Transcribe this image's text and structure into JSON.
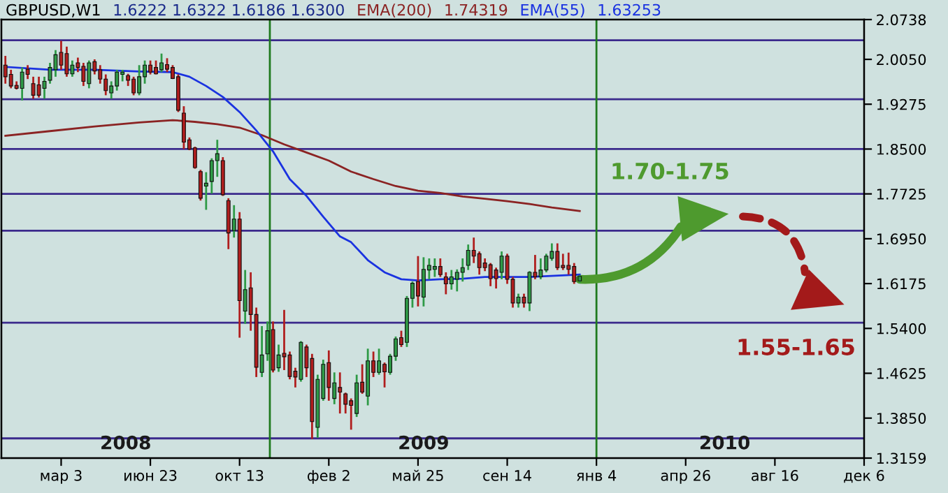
{
  "chart_data": {
    "type": "candlestick",
    "title": "GBPUSD,W1",
    "x": [
      "2007-12-24",
      "2007-12-31",
      "2008-01-07",
      "2008-01-14",
      "2008-01-21",
      "2008-01-28",
      "2008-02-04",
      "2008-02-11",
      "2008-02-18",
      "2008-02-25",
      "2008-03-03",
      "2008-03-10",
      "2008-03-17",
      "2008-03-24",
      "2008-03-31",
      "2008-04-07",
      "2008-04-14",
      "2008-04-21",
      "2008-04-28",
      "2008-05-05",
      "2008-05-12",
      "2008-05-19",
      "2008-05-26",
      "2008-06-02",
      "2008-06-09",
      "2008-06-16",
      "2008-06-23",
      "2008-06-30",
      "2008-07-07",
      "2008-07-14",
      "2008-07-21",
      "2008-07-28",
      "2008-08-04",
      "2008-08-11",
      "2008-08-18",
      "2008-08-25",
      "2008-09-01",
      "2008-09-08",
      "2008-09-15",
      "2008-09-22",
      "2008-09-29",
      "2008-10-06",
      "2008-10-13",
      "2008-10-20",
      "2008-10-27",
      "2008-11-03",
      "2008-11-10",
      "2008-11-17",
      "2008-11-24",
      "2008-12-01",
      "2008-12-08",
      "2008-12-15",
      "2008-12-22",
      "2008-12-29",
      "2009-01-05",
      "2009-01-12",
      "2009-01-19",
      "2009-01-26",
      "2009-02-02",
      "2009-02-09",
      "2009-02-16",
      "2009-02-23",
      "2009-03-02",
      "2009-03-09",
      "2009-03-16",
      "2009-03-23",
      "2009-03-30",
      "2009-04-06",
      "2009-04-13",
      "2009-04-20",
      "2009-04-27",
      "2009-05-04",
      "2009-05-11",
      "2009-05-18",
      "2009-05-25",
      "2009-06-01",
      "2009-06-08",
      "2009-06-15",
      "2009-06-22",
      "2009-06-29",
      "2009-07-06",
      "2009-07-13",
      "2009-07-20",
      "2009-07-27",
      "2009-08-03",
      "2009-08-10",
      "2009-08-17",
      "2009-08-24",
      "2009-08-31",
      "2009-09-07",
      "2009-09-14",
      "2009-09-21",
      "2009-09-28",
      "2009-10-05",
      "2009-10-12",
      "2009-10-19",
      "2009-10-26",
      "2009-11-02",
      "2009-11-09",
      "2009-11-16",
      "2009-11-23",
      "2009-11-30",
      "2009-12-07",
      "2009-12-14"
    ],
    "ohlc": [
      [
        1.995,
        2.011,
        1.963,
        1.975
      ],
      [
        1.979,
        1.987,
        1.955,
        1.959
      ],
      [
        1.96,
        1.967,
        1.953,
        1.955
      ],
      [
        1.955,
        1.991,
        1.934,
        1.983
      ],
      [
        1.988,
        1.995,
        1.971,
        1.979
      ],
      [
        1.963,
        1.975,
        1.937,
        1.943
      ],
      [
        1.961,
        1.975,
        1.939,
        1.943
      ],
      [
        1.955,
        1.975,
        1.937,
        1.967
      ],
      [
        1.969,
        1.999,
        1.963,
        1.991
      ],
      [
        1.987,
        2.021,
        1.975,
        2.013
      ],
      [
        2.017,
        2.037,
        1.987,
        1.995
      ],
      [
        2.015,
        2.027,
        1.975,
        1.98
      ],
      [
        1.98,
        2.003,
        1.975,
        1.995
      ],
      [
        1.999,
        2.008,
        1.983,
        1.991
      ],
      [
        1.993,
        1.999,
        1.959,
        1.967
      ],
      [
        1.963,
        2.003,
        1.955,
        1.999
      ],
      [
        2.001,
        2.005,
        1.979,
        1.985
      ],
      [
        1.987,
        1.995,
        1.963,
        1.971
      ],
      [
        1.971,
        1.979,
        1.943,
        1.951
      ],
      [
        1.947,
        1.967,
        1.937,
        1.959
      ],
      [
        1.959,
        1.987,
        1.951,
        1.983
      ],
      [
        1.979,
        1.987,
        1.967,
        1.983
      ],
      [
        1.977,
        1.98,
        1.959,
        1.969
      ],
      [
        1.971,
        1.975,
        1.943,
        1.947
      ],
      [
        1.947,
        1.995,
        1.943,
        1.975
      ],
      [
        1.975,
        2.003,
        1.963,
        1.995
      ],
      [
        1.995,
        2.003,
        1.979,
        1.983
      ],
      [
        1.991,
        2.003,
        1.979,
        1.98
      ],
      [
        1.987,
        2.015,
        1.983,
        1.999
      ],
      [
        1.996,
        2.007,
        1.983,
        1.988
      ],
      [
        1.991,
        1.995,
        1.971,
        1.972
      ],
      [
        1.975,
        1.979,
        1.914,
        1.917
      ],
      [
        1.912,
        1.924,
        1.85,
        1.862
      ],
      [
        1.866,
        1.87,
        1.848,
        1.85
      ],
      [
        1.852,
        1.854,
        1.816,
        1.818
      ],
      [
        1.811,
        1.814,
        1.761,
        1.765
      ],
      [
        1.786,
        1.81,
        1.745,
        1.791
      ],
      [
        1.794,
        1.834,
        1.773,
        1.83
      ],
      [
        1.83,
        1.866,
        1.802,
        1.842
      ],
      [
        1.83,
        1.836,
        1.769,
        1.771
      ],
      [
        1.761,
        1.765,
        1.677,
        1.705
      ],
      [
        1.709,
        1.753,
        1.697,
        1.729
      ],
      [
        1.729,
        1.741,
        1.524,
        1.588
      ],
      [
        1.57,
        1.641,
        1.548,
        1.607
      ],
      [
        1.61,
        1.637,
        1.536,
        1.564
      ],
      [
        1.564,
        1.576,
        1.456,
        1.473
      ],
      [
        1.464,
        1.544,
        1.456,
        1.494
      ],
      [
        1.496,
        1.552,
        1.484,
        1.536
      ],
      [
        1.538,
        1.552,
        1.464,
        1.468
      ],
      [
        1.472,
        1.512,
        1.465,
        1.494
      ],
      [
        1.497,
        1.572,
        1.468,
        1.491
      ],
      [
        1.494,
        1.5,
        1.452,
        1.457
      ],
      [
        1.466,
        1.472,
        1.438,
        1.456
      ],
      [
        1.452,
        1.518,
        1.448,
        1.516
      ],
      [
        1.508,
        1.512,
        1.456,
        1.472
      ],
      [
        1.488,
        1.496,
        1.349,
        1.379
      ],
      [
        1.369,
        1.46,
        1.351,
        1.452
      ],
      [
        1.419,
        1.486,
        1.415,
        1.478
      ],
      [
        1.481,
        1.502,
        1.415,
        1.438
      ],
      [
        1.419,
        1.464,
        1.409,
        1.446
      ],
      [
        1.438,
        1.464,
        1.393,
        1.43
      ],
      [
        1.427,
        1.429,
        1.393,
        1.409
      ],
      [
        1.415,
        1.419,
        1.365,
        1.407
      ],
      [
        1.393,
        1.46,
        1.387,
        1.446
      ],
      [
        1.447,
        1.478,
        1.427,
        1.43
      ],
      [
        1.423,
        1.505,
        1.407,
        1.484
      ],
      [
        1.484,
        1.5,
        1.456,
        1.464
      ],
      [
        1.464,
        1.505,
        1.46,
        1.484
      ],
      [
        1.478,
        1.481,
        1.438,
        1.465
      ],
      [
        1.464,
        1.496,
        1.46,
        1.492
      ],
      [
        1.492,
        1.526,
        1.484,
        1.522
      ],
      [
        1.524,
        1.536,
        1.508,
        1.512
      ],
      [
        1.516,
        1.596,
        1.508,
        1.592
      ],
      [
        1.592,
        1.621,
        1.576,
        1.618
      ],
      [
        1.621,
        1.665,
        1.578,
        1.596
      ],
      [
        1.594,
        1.663,
        1.578,
        1.642
      ],
      [
        1.641,
        1.661,
        1.625,
        1.649
      ],
      [
        1.642,
        1.661,
        1.629,
        1.647
      ],
      [
        1.647,
        1.661,
        1.629,
        1.633
      ],
      [
        1.629,
        1.637,
        1.599,
        1.617
      ],
      [
        1.617,
        1.641,
        1.607,
        1.629
      ],
      [
        1.625,
        1.642,
        1.604,
        1.637
      ],
      [
        1.637,
        1.661,
        1.621,
        1.645
      ],
      [
        1.649,
        1.685,
        1.641,
        1.675
      ],
      [
        1.675,
        1.697,
        1.653,
        1.665
      ],
      [
        1.669,
        1.673,
        1.633,
        1.645
      ],
      [
        1.653,
        1.661,
        1.639,
        1.645
      ],
      [
        1.65,
        1.653,
        1.613,
        1.626
      ],
      [
        1.641,
        1.645,
        1.609,
        1.626
      ],
      [
        1.637,
        1.673,
        1.625,
        1.665
      ],
      [
        1.665,
        1.669,
        1.617,
        1.625
      ],
      [
        1.625,
        1.629,
        1.576,
        1.584
      ],
      [
        1.584,
        1.6,
        1.576,
        1.594
      ],
      [
        1.594,
        1.6,
        1.576,
        1.584
      ],
      [
        1.584,
        1.639,
        1.57,
        1.637
      ],
      [
        1.637,
        1.667,
        1.625,
        1.629
      ],
      [
        1.629,
        1.661,
        1.625,
        1.641
      ],
      [
        1.641,
        1.669,
        1.637,
        1.665
      ],
      [
        1.661,
        1.687,
        1.657,
        1.673
      ],
      [
        1.673,
        1.687,
        1.641,
        1.645
      ],
      [
        1.649,
        1.669,
        1.641,
        1.645
      ],
      [
        1.649,
        1.671,
        1.633,
        1.642
      ],
      [
        1.647,
        1.653,
        1.617,
        1.621
      ],
      [
        1.6222,
        1.6322,
        1.6186,
        1.63
      ]
    ],
    "colors": [
      "#b01e1e",
      "#b01e1e",
      "#b01e1e",
      "#2e9a46",
      "#b01e1e",
      "#b01e1e",
      "#b01e1e",
      "#2e9a46",
      "#2e9a46",
      "#2e9a46",
      "#b01e1e",
      "#b01e1e",
      "#2e9a46",
      "#b01e1e",
      "#b01e1e",
      "#2e9a46",
      "#b01e1e",
      "#b01e1e",
      "#b01e1e",
      "#2e9a46",
      "#2e9a46",
      "#2e9a46",
      "#b01e1e",
      "#b01e1e",
      "#2e9a46",
      "#2e9a46",
      "#b01e1e",
      "#b01e1e",
      "#2e9a46",
      "#b01e1e",
      "#b01e1e",
      "#b01e1e",
      "#b01e1e",
      "#b01e1e",
      "#b01e1e",
      "#b01e1e",
      "#2e9a46",
      "#2e9a46",
      "#2e9a46",
      "#b01e1e",
      "#b01e1e",
      "#2e9a46",
      "#b01e1e",
      "#2e9a46",
      "#b01e1e",
      "#b01e1e",
      "#2e9a46",
      "#2e9a46",
      "#b01e1e",
      "#2e9a46",
      "#b01e1e",
      "#b01e1e",
      "#b01e1e",
      "#2e9a46",
      "#b01e1e",
      "#b01e1e",
      "#2e9a46",
      "#2e9a46",
      "#b01e1e",
      "#2e9a46",
      "#b01e1e",
      "#b01e1e",
      "#b01e1e",
      "#2e9a46",
      "#b01e1e",
      "#2e9a46",
      "#b01e1e",
      "#2e9a46",
      "#b01e1e",
      "#2e9a46",
      "#2e9a46",
      "#b01e1e",
      "#2e9a46",
      "#2e9a46",
      "#b01e1e",
      "#2e9a46",
      "#2e9a46",
      "#2e9a46",
      "#b01e1e",
      "#b01e1e",
      "#2e9a46",
      "#2e9a46",
      "#2e9a46",
      "#2e9a46",
      "#b01e1e",
      "#b01e1e",
      "#b01e1e",
      "#b01e1e",
      "#b01e1e",
      "#2e9a46",
      "#b01e1e",
      "#b01e1e",
      "#2e9a46",
      "#b01e1e",
      "#2e9a46",
      "#b01e1e",
      "#2e9a46",
      "#2e9a46",
      "#2e9a46",
      "#b01e1e",
      "#b01e1e",
      "#b01e1e",
      "#b01e1e",
      "#2e9a46"
    ],
    "series": [
      {
        "name": "EMA(200)",
        "type": "line",
        "color": "#8b2323",
        "x": [
          "2007-12-24",
          "2008-02-18",
          "2008-04-14",
          "2008-06-09",
          "2008-07-21",
          "2008-08-18",
          "2008-09-15",
          "2008-10-13",
          "2008-11-10",
          "2008-12-08",
          "2009-01-05",
          "2009-02-02",
          "2009-03-02",
          "2009-03-30",
          "2009-04-27",
          "2009-05-25",
          "2009-06-22",
          "2009-07-20",
          "2009-08-17",
          "2009-09-14",
          "2009-10-12",
          "2009-11-09",
          "2009-12-14"
        ],
        "values": [
          1.873,
          1.881,
          1.889,
          1.896,
          1.9,
          1.897,
          1.893,
          1.887,
          1.874,
          1.858,
          1.844,
          1.83,
          1.811,
          1.798,
          1.786,
          1.778,
          1.774,
          1.768,
          1.764,
          1.76,
          1.755,
          1.749,
          1.743
        ]
      },
      {
        "name": "EMA(55)",
        "type": "line",
        "color": "#1a32e0",
        "x": [
          "2007-12-24",
          "2008-02-18",
          "2008-04-14",
          "2008-06-09",
          "2008-07-21",
          "2008-08-11",
          "2008-09-01",
          "2008-09-22",
          "2008-10-13",
          "2008-11-03",
          "2008-11-24",
          "2008-12-15",
          "2009-01-05",
          "2009-01-26",
          "2009-02-16",
          "2009-03-02",
          "2009-03-23",
          "2009-04-13",
          "2009-05-04",
          "2009-05-25",
          "2009-06-22",
          "2009-07-20",
          "2009-08-17",
          "2009-10-12",
          "2009-12-14"
        ],
        "values": [
          1.992,
          1.987,
          1.987,
          1.984,
          1.983,
          1.975,
          1.959,
          1.94,
          1.914,
          1.882,
          1.846,
          1.798,
          1.769,
          1.733,
          1.699,
          1.689,
          1.658,
          1.637,
          1.625,
          1.623,
          1.625,
          1.626,
          1.629,
          1.629,
          1.633
        ]
      }
    ],
    "annotations": [
      "1.6222 1.6322 1.6186 1.6300",
      "1.74319",
      "1.63253",
      "1.70-1.75",
      "1.55-1.65",
      {
        "text": "2008",
        "x": "2008-05-23",
        "y": 1.34
      },
      {
        "text": "2009",
        "x": "2009-06-01",
        "y": 1.34
      },
      {
        "text": "2010",
        "x": "2010-06-14",
        "y": 1.34
      }
    ],
    "ref_lines": [
      {
        "axis": "y",
        "value": 2.038,
        "color": "#3b2a8c"
      },
      {
        "axis": "y",
        "value": 1.936,
        "color": "#3b2a8c"
      },
      {
        "axis": "y",
        "value": 1.85,
        "color": "#3b2a8c"
      },
      {
        "axis": "y",
        "value": 1.7725,
        "color": "#3b2a8c"
      },
      {
        "axis": "y",
        "value": 1.709,
        "color": "#3b2a8c"
      },
      {
        "axis": "y",
        "value": 1.55,
        "color": "#3b2a8c"
      },
      {
        "axis": "y",
        "value": 1.35,
        "color": "#3b2a8c"
      },
      {
        "axis": "x",
        "value": "2008-11-20",
        "color": "#1e7a1e"
      },
      {
        "axis": "x",
        "value": "2010-01-04",
        "color": "#1e7a1e"
      }
    ],
    "xlim": [
      "2007-12-19",
      "2010-12-06"
    ],
    "xticks": [
      {
        "value": "2008-03-03",
        "label": "мар 3"
      },
      {
        "value": "2008-06-23",
        "label": "июн 23"
      },
      {
        "value": "2008-10-13",
        "label": "окт 13"
      },
      {
        "value": "2009-02-02",
        "label": "фев 2"
      },
      {
        "value": "2009-05-25",
        "label": "май 25"
      },
      {
        "value": "2009-09-14",
        "label": "сен 14"
      },
      {
        "value": "2010-01-04",
        "label": "янв 4"
      },
      {
        "value": "2010-04-26",
        "label": "апр 26"
      },
      {
        "value": "2010-08-16",
        "label": "авг 16"
      },
      {
        "value": "2010-12-06",
        "label": "дек 6"
      }
    ],
    "ylim": [
      1.3159,
      2.0738
    ],
    "yticks": [
      2.0738,
      {
        "value": 2.005,
        "label": "2.0050"
      },
      1.9275,
      {
        "value": 1.85,
        "label": "1.8500"
      },
      1.7725,
      {
        "value": 1.695,
        "label": "1.6950"
      },
      1.6175,
      {
        "value": 1.54,
        "label": "1.5400"
      },
      1.4625,
      {
        "value": 1.385,
        "label": "1.3850"
      },
      1.3159
    ],
    "grid": false
  }
}
